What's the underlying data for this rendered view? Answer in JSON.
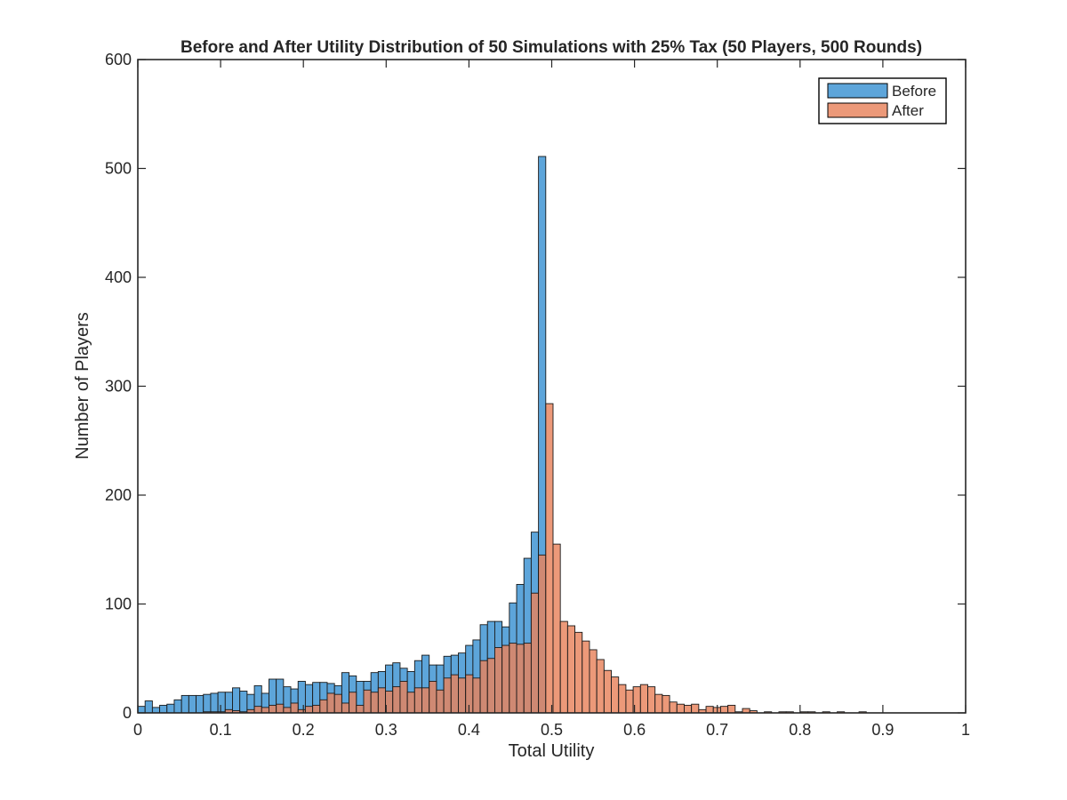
{
  "chart_data": {
    "type": "bar",
    "subtype": "overlaid-histogram",
    "title": "Before and After Utility Distribution of 50 Simulations with 25% Tax (50 Players, 500 Rounds)",
    "xlabel": "Total Utility",
    "ylabel": "Number of Players",
    "xlim": [
      0,
      1
    ],
    "ylim": [
      0,
      600
    ],
    "x_ticks": [
      "0",
      "0.1",
      "0.2",
      "0.3",
      "0.4",
      "0.5",
      "0.6",
      "0.7",
      "0.8",
      "0.9",
      "1"
    ],
    "y_ticks": [
      "0",
      "100",
      "200",
      "300",
      "400",
      "500",
      "600"
    ],
    "grid": false,
    "legend_position": "top-right",
    "series": [
      {
        "name": "Before",
        "color": "#5DA5DA",
        "edge_color": "#1a1a1a",
        "bin_start": 0.0,
        "bin_width": 0.0088,
        "values": [
          6,
          11,
          5,
          7,
          8,
          12,
          16,
          16,
          16,
          17,
          18,
          19,
          19,
          23,
          20,
          17,
          25,
          18,
          31,
          31,
          24,
          22,
          29,
          26,
          28,
          28,
          27,
          25,
          37,
          34,
          29,
          29,
          37,
          38,
          44,
          46,
          41,
          38,
          48,
          53,
          44,
          44,
          52,
          53,
          55,
          62,
          67,
          81,
          84,
          84,
          79,
          101,
          118,
          142,
          166,
          511
        ]
      },
      {
        "name": "After",
        "color": "#E8825B",
        "edge_color": "#1a1a1a",
        "bin_start": 0.0,
        "bin_width": 0.0088,
        "values": [
          0,
          0,
          0,
          0,
          0,
          0,
          0,
          0,
          0,
          1,
          1,
          1,
          3,
          2,
          1,
          3,
          6,
          5,
          7,
          8,
          5,
          9,
          3,
          6,
          7,
          12,
          18,
          17,
          9,
          19,
          7,
          21,
          19,
          23,
          20,
          24,
          29,
          19,
          23,
          23,
          29,
          21,
          32,
          35,
          32,
          35,
          32,
          48,
          50,
          60,
          62,
          64,
          63,
          64,
          110,
          145,
          284,
          155,
          84,
          80,
          74,
          66,
          58,
          49,
          39,
          33,
          26,
          21,
          24,
          26,
          24,
          17,
          16,
          10,
          8,
          7,
          8,
          3,
          6,
          5,
          6,
          7,
          1,
          4,
          2,
          0,
          1,
          0,
          1,
          1,
          0,
          1,
          1,
          0,
          1,
          0,
          1,
          0,
          0,
          1,
          0,
          0,
          0,
          0,
          0,
          0,
          0,
          0,
          0,
          0,
          0,
          0,
          0,
          0
        ]
      }
    ]
  }
}
